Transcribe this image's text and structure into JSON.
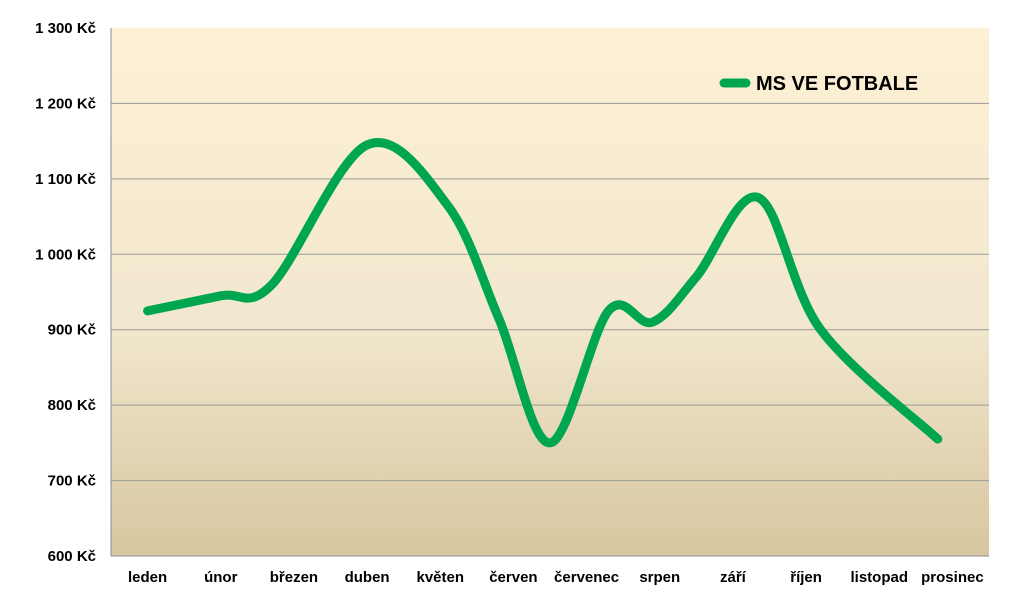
{
  "chart_data": {
    "type": "line",
    "categories": [
      "leden",
      "únor",
      "březen",
      "duben",
      "květen",
      "červen",
      "červenec",
      "srpen",
      "září",
      "říjen",
      "listopad",
      "prosinec"
    ],
    "series": [
      {
        "name": "MS VE FOTBALE",
        "values": [
          925,
          945,
          960,
          1145,
          1065,
          915,
          750,
          925,
          910,
          970,
          1075,
          900,
          755
        ],
        "color": "#00a64f"
      }
    ],
    "x": [
      0.5,
      1.5,
      2.2,
      3.5,
      4.6,
      5.3,
      6.0,
      6.8,
      7.4,
      8.0,
      8.85,
      9.7,
      11.3
    ],
    "y_ticks": [
      "600 Kč",
      "700 Kč",
      "800 Kč",
      "900 Kč",
      "1 000 Kč",
      "1 100 Kč",
      "1 200 Kč",
      "1 300 Kč"
    ],
    "ylim": [
      600,
      1300
    ],
    "grid": true,
    "legend_position": "top-right",
    "colors": {
      "plot_top": "#fdf0d4",
      "plot_bottom": "#d7c69f",
      "grid": "#9a9a9a",
      "line": "#00a64f"
    }
  }
}
